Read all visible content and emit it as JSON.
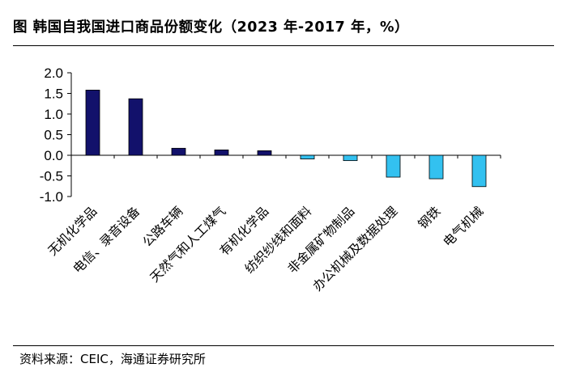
{
  "title": "图  韩国自我国进口商品份额变化（2023 年-2017 年，%）",
  "source": "资料来源：CEIC，海通证券研究所",
  "colors": {
    "positive": "#12116b",
    "negative": "#33c1f0",
    "axis": "#000000"
  },
  "chart_data": {
    "type": "bar",
    "title": "图  韩国自我国进口商品份额变化（2023 年-2017 年，%）",
    "xlabel": "",
    "ylabel": "",
    "ylim": [
      -1.0,
      2.0
    ],
    "yticks": [
      2.0,
      1.5,
      1.0,
      0.5,
      0.0,
      -0.5,
      -1.0
    ],
    "ytick_labels": [
      "2.0",
      "1.5",
      "1.0",
      "0.5",
      "0.0",
      "-0.5",
      "-1.0"
    ],
    "grid": false,
    "categories": [
      "无机化学品",
      "电信、录音设备",
      "公路车辆",
      "天然气和人工煤气",
      "有机化学品",
      "纺织纱线和面料",
      "非金属矿物制品",
      "办公机械及数据处理",
      "钢铁",
      "电气机械"
    ],
    "values": [
      1.58,
      1.37,
      0.17,
      0.13,
      0.11,
      -0.09,
      -0.13,
      -0.53,
      -0.57,
      -0.76
    ]
  }
}
